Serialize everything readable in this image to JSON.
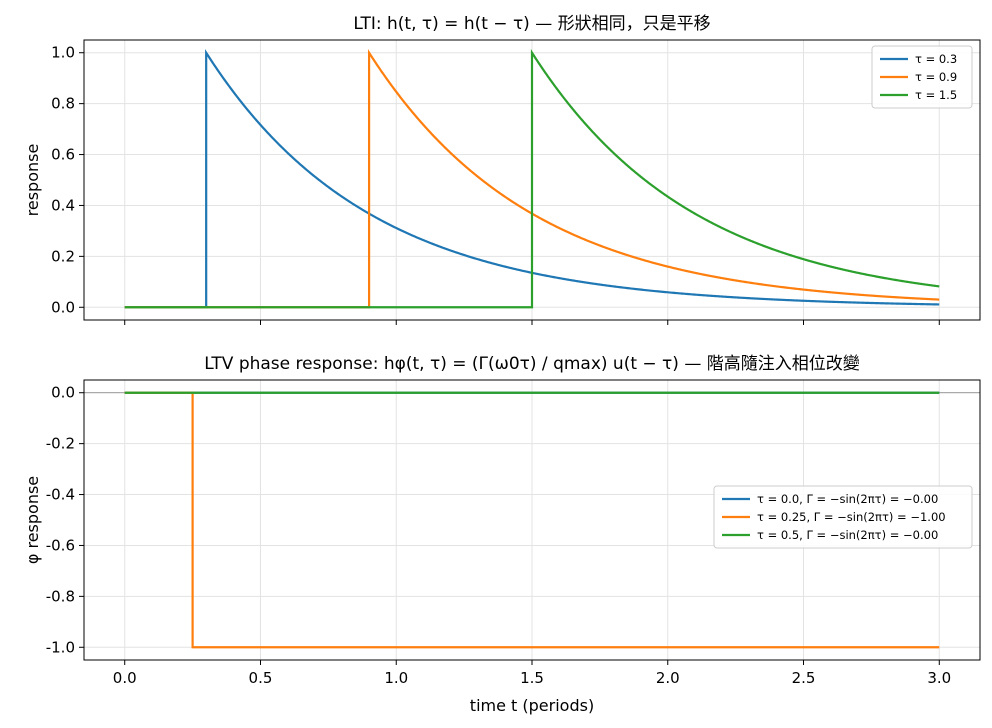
{
  "chart_data": [
    {
      "type": "line",
      "title": "LTI: h(t, τ) = h(t − τ) — 形狀相同，只是平移",
      "xlabel": "",
      "ylabel": "response",
      "xlim": [
        -0.15,
        3.15
      ],
      "ylim": [
        -0.05,
        1.05
      ],
      "xticks": [
        0.0,
        0.5,
        1.0,
        1.5,
        2.0,
        2.5,
        3.0
      ],
      "yticks": [
        0.0,
        0.2,
        0.4,
        0.6,
        0.8,
        1.0
      ],
      "ytick_labels": [
        "0.0",
        "0.2",
        "0.4",
        "0.6",
        "0.8",
        "1.0"
      ],
      "show_xtick_labels": false,
      "grid": true,
      "legend_position": "top-right",
      "x_range": [
        0.0,
        3.0
      ],
      "decay_constant_periods": 0.6,
      "series": [
        {
          "name": "τ = 0.3",
          "color": "#1f77b4",
          "tau": 0.3
        },
        {
          "name": "τ = 0.9",
          "color": "#ff7f0e",
          "tau": 0.9
        },
        {
          "name": "τ = 1.5",
          "color": "#2ca02c",
          "tau": 1.5
        }
      ]
    },
    {
      "type": "line",
      "title": "LTV phase response: hφ(t, τ) = (Γ(ω0τ) / qmax) u(t − τ) — 階高隨注入相位改變",
      "xlabel": "time t (periods)",
      "ylabel": "φ response",
      "xlim": [
        -0.15,
        3.15
      ],
      "ylim": [
        -1.05,
        0.05
      ],
      "xticks": [
        0.0,
        0.5,
        1.0,
        1.5,
        2.0,
        2.5,
        3.0
      ],
      "xtick_labels": [
        "0.0",
        "0.5",
        "1.0",
        "1.5",
        "2.0",
        "2.5",
        "3.0"
      ],
      "yticks": [
        0.0,
        -0.2,
        -0.4,
        -0.6,
        -0.8,
        -1.0
      ],
      "ytick_labels": [
        "0.0",
        "-0.2",
        "-0.4",
        "-0.6",
        "-0.8",
        "-1.0"
      ],
      "grid": true,
      "legend_position": "center-right",
      "reference_line_y": 0.0,
      "x_range": [
        0.0,
        3.0
      ],
      "series": [
        {
          "name": "τ = 0.0, Γ = −sin(2πτ) = −0.00",
          "color": "#1f77b4",
          "tau": 0.0,
          "step": -0.0
        },
        {
          "name": "τ = 0.25, Γ = −sin(2πτ) = −1.00",
          "color": "#ff7f0e",
          "tau": 0.25,
          "step": -1.0
        },
        {
          "name": "τ = 0.5, Γ = −sin(2πτ) = −0.00",
          "color": "#2ca02c",
          "tau": 0.5,
          "step": -0.0
        }
      ]
    }
  ]
}
